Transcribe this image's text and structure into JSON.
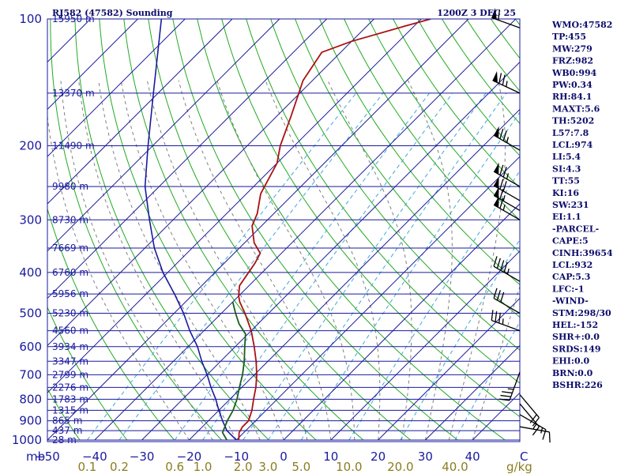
{
  "header": {
    "station": "RJ582 (47582) Sounding",
    "time": "1200Z  3 DEC 25"
  },
  "indices": [
    "WMO:47582",
    "TP:455",
    "MW:279",
    "FRZ:982",
    "WB0:994",
    "PW:0.34",
    "RH:84.1",
    "MAXT:5.6",
    "TH:5202",
    "L57:7.8",
    "LCL:974",
    "LI:5.4",
    "SI:4.3",
    "TT:55",
    "KI:16",
    "SW:231",
    "EI:1.1",
    "-PARCEL-",
    "CAPE:5",
    "CINH:39654",
    "LCL:932",
    "CAP:5.3",
    "LFC:-1",
    "-WIND-",
    "STM:298/30",
    "HEL:-152",
    "SHR+:0.0",
    "SRDS:149",
    "EHI:0.0",
    "BRN:0.0",
    "BSHR:226"
  ],
  "chart_data": {
    "type": "line",
    "x_unit": "°C",
    "y_unit": "mb",
    "mixing_ratio_unit": "g/kg",
    "pressure_levels": [
      100,
      200,
      300,
      400,
      500,
      600,
      700,
      800,
      900,
      1000
    ],
    "temp_ticks": [
      -50,
      -40,
      -30,
      -20,
      -10,
      0,
      10,
      20,
      30,
      40
    ],
    "xlim": [
      -50,
      50
    ],
    "ylim": [
      1000,
      100
    ],
    "height_labels": [
      {
        "p": 100,
        "text": "15950 m"
      },
      {
        "p": 150,
        "text": "13370 m"
      },
      {
        "p": 200,
        "text": "11490 m"
      },
      {
        "p": 250,
        "text": "9980 m"
      },
      {
        "p": 300,
        "text": "8730 m"
      },
      {
        "p": 350,
        "text": "7669 m"
      },
      {
        "p": 400,
        "text": "6760 m"
      },
      {
        "p": 450,
        "text": "5956 m"
      },
      {
        "p": 500,
        "text": "5230 m"
      },
      {
        "p": 550,
        "text": "4560 m"
      },
      {
        "p": 600,
        "text": "3934 m"
      },
      {
        "p": 650,
        "text": "3347 m"
      },
      {
        "p": 700,
        "text": "2799 m"
      },
      {
        "p": 750,
        "text": "2276 m"
      },
      {
        "p": 800,
        "text": "1783 m"
      },
      {
        "p": 850,
        "text": "1315 m"
      },
      {
        "p": 900,
        "text": "865 m"
      },
      {
        "p": 950,
        "text": "437 m"
      },
      {
        "p": 1000,
        "text": "28 m"
      }
    ],
    "mixing_ratio_labels": [
      "0.1",
      "0.2",
      "0.6",
      "1.0",
      "2.0",
      "3.0",
      "5.0",
      "10.0",
      "20.0",
      "40.0"
    ],
    "mixing_ratio_values": [
      0.1,
      0.2,
      0.6,
      1.0,
      2.0,
      3.0,
      5.0,
      10.0,
      20.0,
      40.0
    ],
    "temperature": [
      {
        "p": 1000,
        "t": -9.5
      },
      {
        "p": 960,
        "t": -11
      },
      {
        "p": 930,
        "t": -11.5
      },
      {
        "p": 900,
        "t": -11.5
      },
      {
        "p": 850,
        "t": -13
      },
      {
        "p": 800,
        "t": -15
      },
      {
        "p": 750,
        "t": -17
      },
      {
        "p": 700,
        "t": -19.5
      },
      {
        "p": 650,
        "t": -22.5
      },
      {
        "p": 600,
        "t": -26
      },
      {
        "p": 550,
        "t": -30
      },
      {
        "p": 500,
        "t": -35
      },
      {
        "p": 470,
        "t": -38.5
      },
      {
        "p": 455,
        "t": -40
      },
      {
        "p": 430,
        "t": -42
      },
      {
        "p": 380,
        "t": -43.5
      },
      {
        "p": 360,
        "t": -44.5
      },
      {
        "p": 340,
        "t": -48
      },
      {
        "p": 310,
        "t": -52
      },
      {
        "p": 290,
        "t": -53.5
      },
      {
        "p": 260,
        "t": -57
      },
      {
        "p": 220,
        "t": -60
      },
      {
        "p": 200,
        "t": -63
      },
      {
        "p": 170,
        "t": -67
      },
      {
        "p": 140,
        "t": -72
      },
      {
        "p": 120,
        "t": -74
      },
      {
        "p": 113,
        "t": -70
      },
      {
        "p": 104,
        "t": -62
      },
      {
        "p": 100,
        "t": -58
      }
    ],
    "dewpoint": [
      {
        "p": 1000,
        "t": -12
      },
      {
        "p": 960,
        "t": -14.5
      },
      {
        "p": 900,
        "t": -16
      },
      {
        "p": 850,
        "t": -17
      },
      {
        "p": 800,
        "t": -18.5
      },
      {
        "p": 750,
        "t": -20.5
      },
      {
        "p": 700,
        "t": -22.5
      },
      {
        "p": 650,
        "t": -25
      },
      {
        "p": 600,
        "t": -28
      },
      {
        "p": 560,
        "t": -30.5
      },
      {
        "p": 530,
        "t": -34
      },
      {
        "p": 500,
        "t": -37
      },
      {
        "p": 470,
        "t": -40
      }
    ],
    "parcel": [
      {
        "p": 1000,
        "t": -10
      },
      {
        "p": 950,
        "t": -14
      },
      {
        "p": 900,
        "t": -17
      },
      {
        "p": 850,
        "t": -20
      },
      {
        "p": 800,
        "t": -23
      },
      {
        "p": 750,
        "t": -26.5
      },
      {
        "p": 700,
        "t": -30
      },
      {
        "p": 650,
        "t": -34
      },
      {
        "p": 600,
        "t": -38
      },
      {
        "p": 550,
        "t": -43
      },
      {
        "p": 500,
        "t": -48
      },
      {
        "p": 450,
        "t": -54
      },
      {
        "p": 400,
        "t": -61
      },
      {
        "p": 350,
        "t": -68
      },
      {
        "p": 300,
        "t": -75
      },
      {
        "p": 250,
        "t": -83
      },
      {
        "p": 200,
        "t": -91
      },
      {
        "p": 150,
        "t": -101
      },
      {
        "p": 100,
        "t": -115
      }
    ],
    "winds": [
      {
        "p": 105,
        "dir": 290,
        "spd": 60
      },
      {
        "p": 150,
        "dir": 295,
        "spd": 75
      },
      {
        "p": 205,
        "dir": 300,
        "spd": 75
      },
      {
        "p": 250,
        "dir": 300,
        "spd": 75
      },
      {
        "p": 270,
        "dir": 300,
        "spd": 70
      },
      {
        "p": 285,
        "dir": 300,
        "spd": 65
      },
      {
        "p": 300,
        "dir": 300,
        "spd": 65
      },
      {
        "p": 420,
        "dir": 300,
        "spd": 45
      },
      {
        "p": 500,
        "dir": 300,
        "spd": 30
      },
      {
        "p": 550,
        "dir": 290,
        "spd": 35
      },
      {
        "p": 690,
        "dir": 200,
        "spd": 35
      },
      {
        "p": 780,
        "dir": 140,
        "spd": 20
      },
      {
        "p": 820,
        "dir": 140,
        "spd": 15
      },
      {
        "p": 870,
        "dir": 120,
        "spd": 15
      },
      {
        "p": 930,
        "dir": 100,
        "spd": 10
      }
    ],
    "colors": {
      "isobar": "#1a1a9e",
      "isotherm": "#1a1a9e",
      "dry_adiabat": "#22aa22",
      "moist_adiabat": "#808080",
      "mixing_ratio": "#40a8d8",
      "temperature": "#aa1111",
      "dewpoint": "#1a5e1a",
      "parcel": "#1a1a9e",
      "wind": "#000000",
      "axis_text": "#1a1a9e",
      "mixing_ratio_text": "#8b7d20"
    }
  }
}
